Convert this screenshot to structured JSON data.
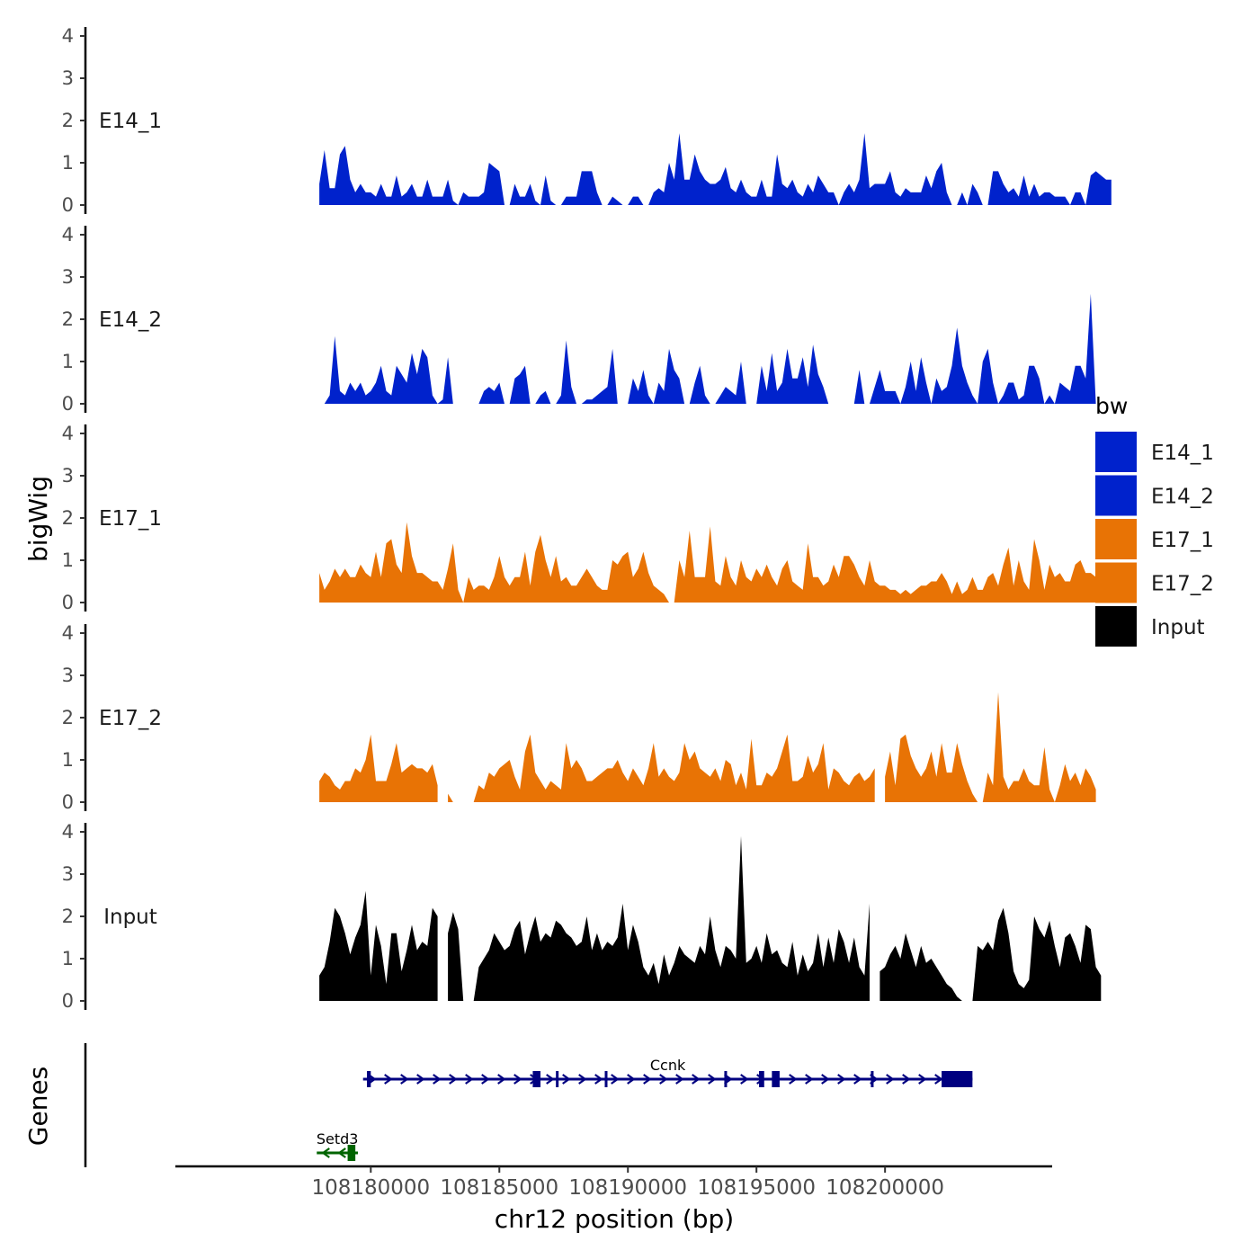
{
  "chart_data": {
    "type": "area",
    "subtype": "genome-track",
    "chromosome": "chr12",
    "xlabel": "chr12 position (bp)",
    "ylabel": "bigWig",
    "genes_label": "Genes",
    "xlim": [
      108172400,
      108206500
    ],
    "x_ticks": [
      108180000,
      108185000,
      108190000,
      108195000,
      108200000
    ],
    "x_tick_labels": [
      "108180000",
      "108185000",
      "108190000",
      "108195000",
      "108200000"
    ],
    "ylim": [
      0,
      4
    ],
    "y_ticks": [
      0,
      1,
      2,
      3,
      4
    ],
    "y_tick_labels": [
      "0",
      "1",
      "2",
      "3",
      "4"
    ],
    "legend": {
      "title": "bw",
      "position": "right",
      "entries": [
        {
          "name": "E14_1",
          "color": "#0022CC"
        },
        {
          "name": "E14_2",
          "color": "#0022CC"
        },
        {
          "name": "E17_1",
          "color": "#E87305"
        },
        {
          "name": "E17_2",
          "color": "#E87305"
        },
        {
          "name": "Input",
          "color": "#000000"
        }
      ]
    },
    "series": [
      {
        "name": "E14_1",
        "color": "#0022CC",
        "x_start": 108178000,
        "x_step": 200,
        "values": [
          0.5,
          1.3,
          0.4,
          0.4,
          1.2,
          1.4,
          0.6,
          0.3,
          0.5,
          0.3,
          0.3,
          0.2,
          0.5,
          0.2,
          0.2,
          0.7,
          0.2,
          0.3,
          0.5,
          0.2,
          0.2,
          0.6,
          0.2,
          0.2,
          0.2,
          0.6,
          0.1,
          0,
          0.3,
          0.2,
          0.2,
          0.2,
          0.3,
          1.0,
          0.9,
          0.8,
          0,
          0,
          0.5,
          0.2,
          0.2,
          0.5,
          0.1,
          0,
          0.7,
          0.1,
          0,
          0,
          0.2,
          0.2,
          0.2,
          0.8,
          0.8,
          0.8,
          0.3,
          0,
          0,
          0.2,
          0.1,
          0,
          0,
          0.2,
          0.2,
          0,
          0,
          0.3,
          0.4,
          0.3,
          1.0,
          0.6,
          1.7,
          0.6,
          0.6,
          1.2,
          0.8,
          0.6,
          0.5,
          0.5,
          0.6,
          0.9,
          0.4,
          0.3,
          0.6,
          0.3,
          0.2,
          0.2,
          0.6,
          0.2,
          0.2,
          1.2,
          0.5,
          0.4,
          0.6,
          0.3,
          0.2,
          0.5,
          0.3,
          0.7,
          0.5,
          0.3,
          0.3,
          0,
          0.3,
          0.5,
          0.3,
          0.6,
          1.7,
          0.4,
          0.5,
          0.5,
          0.5,
          0.8,
          0.3,
          0.2,
          0.4,
          0.3,
          0.3,
          0.3,
          0.7,
          0.4,
          0.8,
          1.0,
          0.3,
          0,
          0,
          0.3,
          0,
          0.5,
          0.3,
          0,
          0,
          0.8,
          0.8,
          0.5,
          0.3,
          0.4,
          0.2,
          0.7,
          0.2,
          0.5,
          0.2,
          0.3,
          0.3,
          0.2,
          0.2,
          0.2,
          0,
          0.3,
          0.3,
          0,
          0.7,
          0.8,
          0.7,
          0.6,
          0.6
        ],
        "gaps": []
      },
      {
        "name": "E14_2",
        "color": "#0022CC",
        "x_start": 108178000,
        "x_step": 200,
        "values": [
          0,
          0,
          0.2,
          1.6,
          0.3,
          0.2,
          0.5,
          0.3,
          0.5,
          0.2,
          0.3,
          0.5,
          0.9,
          0.3,
          0.2,
          0.9,
          0.7,
          0.5,
          1.2,
          0.7,
          1.3,
          1.1,
          0.2,
          0,
          0.1,
          1.1,
          0,
          0,
          0,
          0,
          0,
          0,
          0.3,
          0.4,
          0.3,
          0.5,
          0,
          0,
          0.6,
          0.7,
          0.9,
          0,
          0,
          0.2,
          0.3,
          0,
          0,
          0.2,
          1.5,
          0.4,
          0,
          0,
          0.1,
          0.1,
          0.2,
          0.3,
          0.4,
          1.3,
          0,
          0,
          0,
          0.6,
          0.3,
          0.8,
          0.2,
          0,
          0.5,
          0.3,
          1.3,
          0.8,
          0.6,
          0,
          0,
          0.5,
          0.9,
          0.2,
          0,
          0,
          0.2,
          0.4,
          0.3,
          0.2,
          1.0,
          0,
          0,
          0,
          0.9,
          0.3,
          1.2,
          0.3,
          0.5,
          1.3,
          0.6,
          0.6,
          1.1,
          0.4,
          1.4,
          0.7,
          0.4,
          0,
          0,
          0,
          0,
          0,
          0,
          0.8,
          0,
          0,
          0.4,
          0.8,
          0.3,
          0.3,
          0.3,
          0,
          0.4,
          1.0,
          0.3,
          1.1,
          0.5,
          0,
          0.6,
          0.3,
          0.4,
          0.9,
          1.8,
          0.9,
          0.5,
          0.2,
          0,
          1.0,
          1.3,
          0.5,
          0,
          0.2,
          0.5,
          0.5,
          0.1,
          0.2,
          0.9,
          0.9,
          0.6,
          0,
          0.2,
          0,
          0.5,
          0.4,
          0.3,
          0.9,
          0.9,
          0.6,
          2.6,
          0,
          0,
          0,
          0
        ],
        "gaps": []
      },
      {
        "name": "E17_1",
        "color": "#E87305",
        "x_start": 108178000,
        "x_step": 200,
        "values": [
          0.7,
          0.3,
          0.5,
          0.8,
          0.6,
          0.8,
          0.6,
          0.6,
          0.9,
          0.7,
          0.6,
          1.2,
          0.6,
          1.4,
          1.5,
          0.9,
          0.7,
          1.9,
          1.1,
          0.7,
          0.7,
          0.6,
          0.5,
          0.5,
          0.3,
          0.8,
          1.4,
          0.3,
          0,
          0.6,
          0.3,
          0.4,
          0.4,
          0.3,
          0.6,
          1.1,
          0.6,
          0.4,
          0.6,
          0.6,
          1.2,
          0.4,
          1.2,
          1.6,
          1.0,
          0.6,
          1.1,
          0.5,
          0.6,
          0.4,
          0.4,
          0.6,
          0.8,
          0.6,
          0.4,
          0.3,
          0.3,
          1.0,
          0.9,
          1.1,
          1.2,
          0.6,
          0.8,
          1.2,
          0.7,
          0.4,
          0.3,
          0.2,
          0,
          0,
          1.0,
          0.6,
          1.7,
          0.6,
          0.6,
          0.6,
          1.8,
          0.5,
          0.4,
          1.1,
          0.6,
          0.4,
          1.0,
          0.6,
          0.5,
          0.8,
          0.6,
          0.9,
          0.6,
          0.4,
          0.8,
          1.0,
          0.5,
          0.4,
          0.3,
          1.4,
          0.6,
          0.6,
          0.4,
          0.5,
          0.9,
          0.6,
          1.1,
          1.1,
          0.9,
          0.6,
          0.4,
          1.0,
          0.5,
          0.4,
          0.4,
          0.3,
          0.3,
          0.2,
          0.3,
          0.2,
          0.3,
          0.4,
          0.4,
          0.5,
          0.5,
          0.7,
          0.5,
          0.2,
          0.5,
          0.2,
          0.3,
          0.6,
          0.3,
          0.3,
          0.6,
          0.7,
          0.4,
          0.9,
          1.3,
          0.4,
          1.0,
          0.5,
          0.3,
          1.5,
          1.0,
          0.3,
          0.9,
          0.6,
          0.7,
          0.5,
          0.5,
          0.9,
          1.0,
          0.7,
          0.7,
          0.6,
          0.9
        ],
        "gaps": []
      },
      {
        "name": "E17_2",
        "color": "#E87305",
        "x_start": 108178000,
        "x_step": 200,
        "values": [
          0.5,
          0.7,
          0.6,
          0.4,
          0.3,
          0.5,
          0.5,
          0.8,
          0.7,
          1.0,
          1.6,
          0.5,
          0.5,
          0.5,
          0.9,
          1.4,
          0.7,
          0.8,
          0.9,
          0.8,
          0.8,
          0.7,
          0.9,
          0.4,
          0.8,
          0.2,
          0,
          0,
          0,
          0,
          0,
          0.4,
          0.3,
          0.7,
          0.6,
          0.8,
          0.9,
          1.0,
          0.6,
          0.3,
          1.2,
          1.6,
          0.7,
          0.5,
          0.3,
          0.5,
          0.4,
          0.3,
          1.4,
          0.8,
          1.0,
          0.8,
          0.5,
          0.5,
          0.6,
          0.7,
          0.8,
          0.8,
          1.0,
          0.7,
          0.5,
          0.8,
          0.6,
          0.4,
          0.8,
          1.4,
          0.6,
          0.8,
          0.6,
          0.5,
          0.7,
          1.4,
          1.0,
          1.2,
          0.8,
          0.7,
          0.6,
          0.8,
          0.5,
          1.0,
          0.9,
          0.4,
          0.7,
          0.3,
          1.5,
          0.4,
          0.4,
          0.7,
          0.6,
          0.8,
          1.2,
          1.6,
          0.5,
          0.5,
          0.6,
          1.1,
          0.7,
          0.9,
          1.4,
          0.3,
          0.8,
          0.7,
          0.5,
          0.4,
          0.6,
          0.7,
          0.5,
          0.6,
          0.8,
          0.4,
          0.6,
          1.2,
          0.4,
          1.5,
          1.6,
          1.1,
          0.8,
          0.6,
          0.8,
          1.2,
          0.6,
          1.4,
          0.7,
          0.7,
          1.4,
          0.9,
          0.5,
          0.2,
          0,
          0,
          0.7,
          0.4,
          2.6,
          0.6,
          0.3,
          0.5,
          0.5,
          0.8,
          0.5,
          0.4,
          0.4,
          1.3,
          0.3,
          0,
          0.4,
          0.9,
          0.5,
          0.7,
          0.4,
          0.8,
          0.6,
          0.3
        ],
        "gaps": [
          [
            108182600,
            108183000
          ],
          [
            108199700,
            108200000
          ]
        ]
      },
      {
        "name": "Input",
        "color": "#000000",
        "x_start": 108178000,
        "x_step": 200,
        "values": [
          0.6,
          0.8,
          1.4,
          2.2,
          2.0,
          1.6,
          1.1,
          1.5,
          1.8,
          2.6,
          0.6,
          1.8,
          1.3,
          0.4,
          1.6,
          1.6,
          0.7,
          1.2,
          1.8,
          1.2,
          1.4,
          1.3,
          2.2,
          2.0,
          1.0,
          1.6,
          2.1,
          1.7,
          0,
          0,
          0,
          0.8,
          1.0,
          1.2,
          1.6,
          1.4,
          1.2,
          1.3,
          1.7,
          1.9,
          1.1,
          1.6,
          2.0,
          1.4,
          1.6,
          1.5,
          1.9,
          1.8,
          1.6,
          1.5,
          1.3,
          1.4,
          2.0,
          1.2,
          1.6,
          1.2,
          1.4,
          1.3,
          1.5,
          2.3,
          1.2,
          1.8,
          1.4,
          0.8,
          0.6,
          0.9,
          0.4,
          1.1,
          0.6,
          0.9,
          1.3,
          1.1,
          1.0,
          0.9,
          1.3,
          1.1,
          2.0,
          1.2,
          0.8,
          1.3,
          1.2,
          1.0,
          3.9,
          0.9,
          1.0,
          1.3,
          0.9,
          1.6,
          1.1,
          1.2,
          0.9,
          0.8,
          1.4,
          0.6,
          1.1,
          0.7,
          0.9,
          1.6,
          0.8,
          1.5,
          0.9,
          1.7,
          1.4,
          0.9,
          1.5,
          0.8,
          0.6,
          2.3,
          1.1,
          0.7,
          0.8,
          1.1,
          1.3,
          1.0,
          1.6,
          1.2,
          0.8,
          1.3,
          0.9,
          1.0,
          0.8,
          0.6,
          0.4,
          0.3,
          0.1,
          0,
          0,
          0,
          1.3,
          1.2,
          1.4,
          1.2,
          1.9,
          2.2,
          1.6,
          0.7,
          0.4,
          0.3,
          0.5,
          2.0,
          1.7,
          1.5,
          1.9,
          1.3,
          0.8,
          1.5,
          1.6,
          1.3,
          0.9,
          1.8,
          1.7,
          0.8,
          0.6
        ],
        "gaps": [
          [
            108182600,
            108183000
          ],
          [
            108199400,
            108199700
          ]
        ]
      }
    ],
    "genes": [
      {
        "name": "Ccnk",
        "strand": "+",
        "color": "#000080",
        "start": 108179700,
        "end": 108203400,
        "row": 1,
        "exons": [
          [
            108179850,
            108180000
          ],
          [
            108186300,
            108186600
          ],
          [
            108187200,
            108187300
          ],
          [
            108189100,
            108189200
          ],
          [
            108193750,
            108193850
          ],
          [
            108195100,
            108195300
          ],
          [
            108195600,
            108195900
          ],
          [
            108199450,
            108199500
          ],
          [
            108202200,
            108203400
          ]
        ]
      },
      {
        "name": "Setd3",
        "strand": "-",
        "color": "#006400",
        "start": 108177900,
        "end": 108179500,
        "row": 2,
        "exons": [
          [
            108179100,
            108179400
          ]
        ]
      }
    ]
  }
}
